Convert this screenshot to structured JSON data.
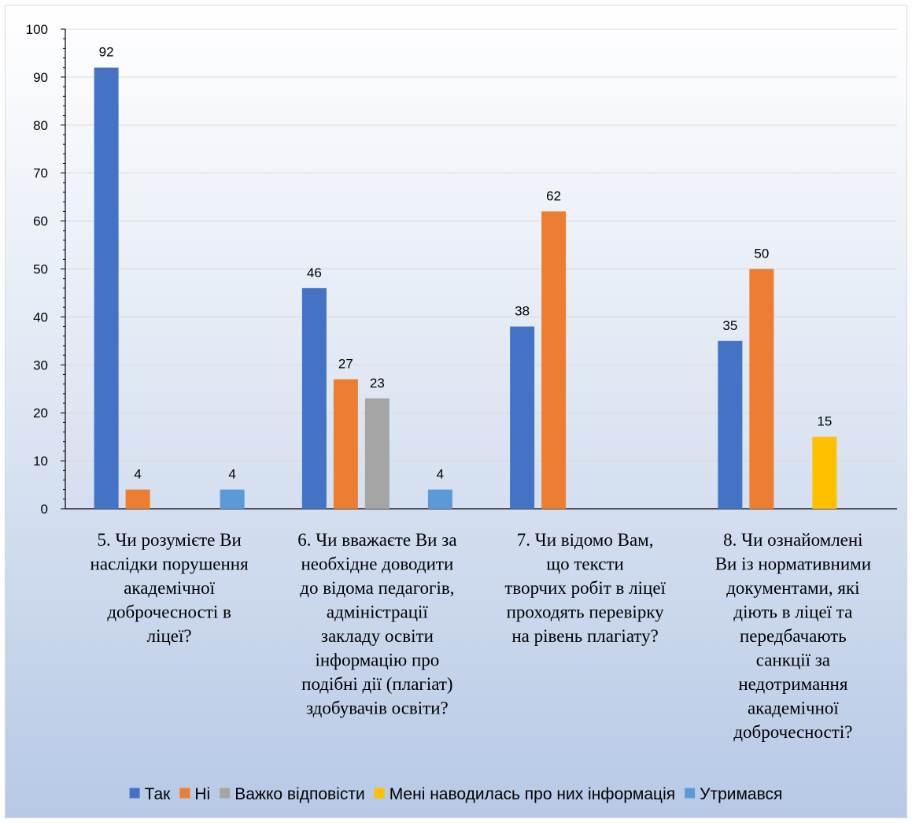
{
  "chart_data": {
    "type": "bar",
    "title": "",
    "xlabel": "",
    "ylabel": "",
    "ylim": [
      0,
      100
    ],
    "yticks": [
      0,
      10,
      20,
      30,
      40,
      50,
      60,
      70,
      80,
      90,
      100
    ],
    "grid": true,
    "legend_position": "bottom",
    "categories": [
      [
        "5. Чи розумієте Ви",
        "наслідки порушення",
        "академічної",
        "доброчесності в",
        "ліцеї?"
      ],
      [
        "6. Чи вважаєте Ви за",
        "необхідне доводити",
        "до відома педагогів,",
        "адміністрації",
        "закладу освіти",
        "інформацію про",
        "подібні дії (плагіат)",
        "здобувачів освіти?"
      ],
      [
        "7. Чи відомо Вам,",
        "що тексти",
        "творчих робіт в ліцеї",
        "проходять перевірку",
        "на рівень плагіату?"
      ],
      [
        "8. Чи ознайомлені",
        "Ви із нормативними",
        "документами, які",
        "діють в ліцеї та",
        "передбачають",
        "санкції за",
        "недотримання",
        "академічної",
        "доброчесності?"
      ]
    ],
    "series": [
      {
        "name": "Так",
        "color": "#4472c4",
        "values": [
          92,
          46,
          38,
          35
        ]
      },
      {
        "name": "Ні",
        "color": "#ed7d31",
        "values": [
          4,
          27,
          62,
          50
        ]
      },
      {
        "name": "Важко відповісти",
        "color": "#a5a5a5",
        "values": [
          null,
          23,
          null,
          null
        ]
      },
      {
        "name": "Мені наводилась про них інформація",
        "color": "#ffc000",
        "values": [
          null,
          null,
          null,
          15
        ]
      },
      {
        "name": "Утримався",
        "color": "#5b9bd5",
        "values": [
          4,
          4,
          null,
          null
        ]
      }
    ]
  }
}
